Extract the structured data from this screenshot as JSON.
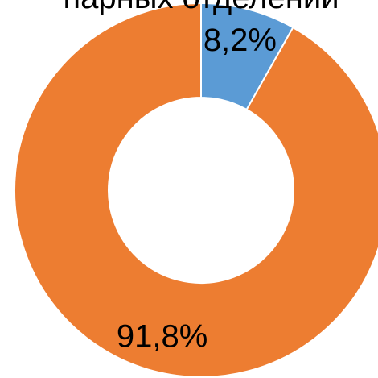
{
  "chart_data": {
    "type": "pie",
    "variant": "donut",
    "title": "парных отделений",
    "slices": [
      {
        "value": 8.2,
        "label": "8,2%",
        "color": "#5b9bd5"
      },
      {
        "value": 91.8,
        "label": "91,8%",
        "color": "#ed7d31"
      }
    ],
    "start_angle_deg": 0,
    "direction": "clockwise",
    "legend": "none"
  }
}
